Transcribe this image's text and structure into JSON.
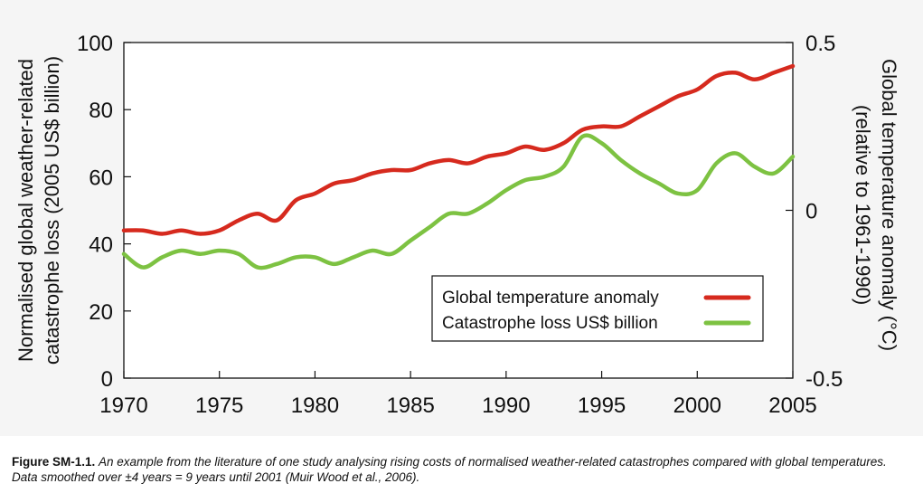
{
  "chart_data": {
    "type": "line",
    "x_label_ticks": [
      "1970",
      "1975",
      "1980",
      "1985",
      "1990",
      "1995",
      "2000",
      "2005"
    ],
    "x_range": [
      1970,
      2005
    ],
    "left_axis": {
      "label_line1": "Normalised global weather-related",
      "label_line2": "catastrophe loss (2005 US$ billion)",
      "ticks": [
        "100",
        "80",
        "60",
        "40",
        "20",
        "0"
      ],
      "ylim": [
        0,
        100
      ]
    },
    "right_axis": {
      "label_line1": "Global temperature anomaly (°C)",
      "label_line2": "(relative to 1961-1990)",
      "ticks": [
        "0.5",
        "0",
        "-0.5"
      ],
      "ylim": [
        -0.5,
        0.5
      ]
    },
    "grid": false,
    "legend_position": "bottom-right",
    "series": [
      {
        "name": "Global temperature anomaly",
        "axis": "right",
        "color": "#d62a1e",
        "x": [
          1970,
          1971,
          1972,
          1973,
          1974,
          1975,
          1976,
          1977,
          1978,
          1979,
          1980,
          1981,
          1982,
          1983,
          1984,
          1985,
          1986,
          1987,
          1988,
          1989,
          1990,
          1991,
          1992,
          1993,
          1994,
          1995,
          1996,
          1997,
          1998,
          1999,
          2000,
          2001,
          2002,
          2003,
          2004,
          2005
        ],
        "y": [
          -0.06,
          -0.06,
          -0.07,
          -0.06,
          -0.07,
          -0.06,
          -0.03,
          -0.01,
          -0.03,
          0.03,
          0.05,
          0.08,
          0.09,
          0.11,
          0.12,
          0.12,
          0.14,
          0.15,
          0.14,
          0.16,
          0.17,
          0.19,
          0.18,
          0.2,
          0.24,
          0.25,
          0.25,
          0.28,
          0.31,
          0.34,
          0.36,
          0.4,
          0.41,
          0.39,
          0.41,
          0.43
        ]
      },
      {
        "name": "Catastrophe loss US$ billion",
        "axis": "left",
        "color": "#7dc242",
        "x": [
          1970,
          1971,
          1972,
          1973,
          1974,
          1975,
          1976,
          1977,
          1978,
          1979,
          1980,
          1981,
          1982,
          1983,
          1984,
          1985,
          1986,
          1987,
          1988,
          1989,
          1990,
          1991,
          1992,
          1993,
          1994,
          1995,
          1996,
          1997,
          1998,
          1999,
          2000,
          2001,
          2002,
          2003,
          2004,
          2005
        ],
        "y": [
          37,
          33,
          36,
          38,
          37,
          38,
          37,
          33,
          34,
          36,
          36,
          34,
          36,
          38,
          37,
          41,
          45,
          49,
          49,
          52,
          56,
          59,
          60,
          63,
          72,
          70,
          65,
          61,
          58,
          55,
          56,
          64,
          67,
          63,
          61,
          66
        ]
      }
    ]
  },
  "caption": {
    "label": "Figure SM-1.1.",
    "text": "An example from the literature of one study analysing rising costs of normalised weather-related catastrophes compared with global temperatures. Data smoothed over ±4 years = 9 years until 2001 (Muir Wood et al., 2006)."
  }
}
